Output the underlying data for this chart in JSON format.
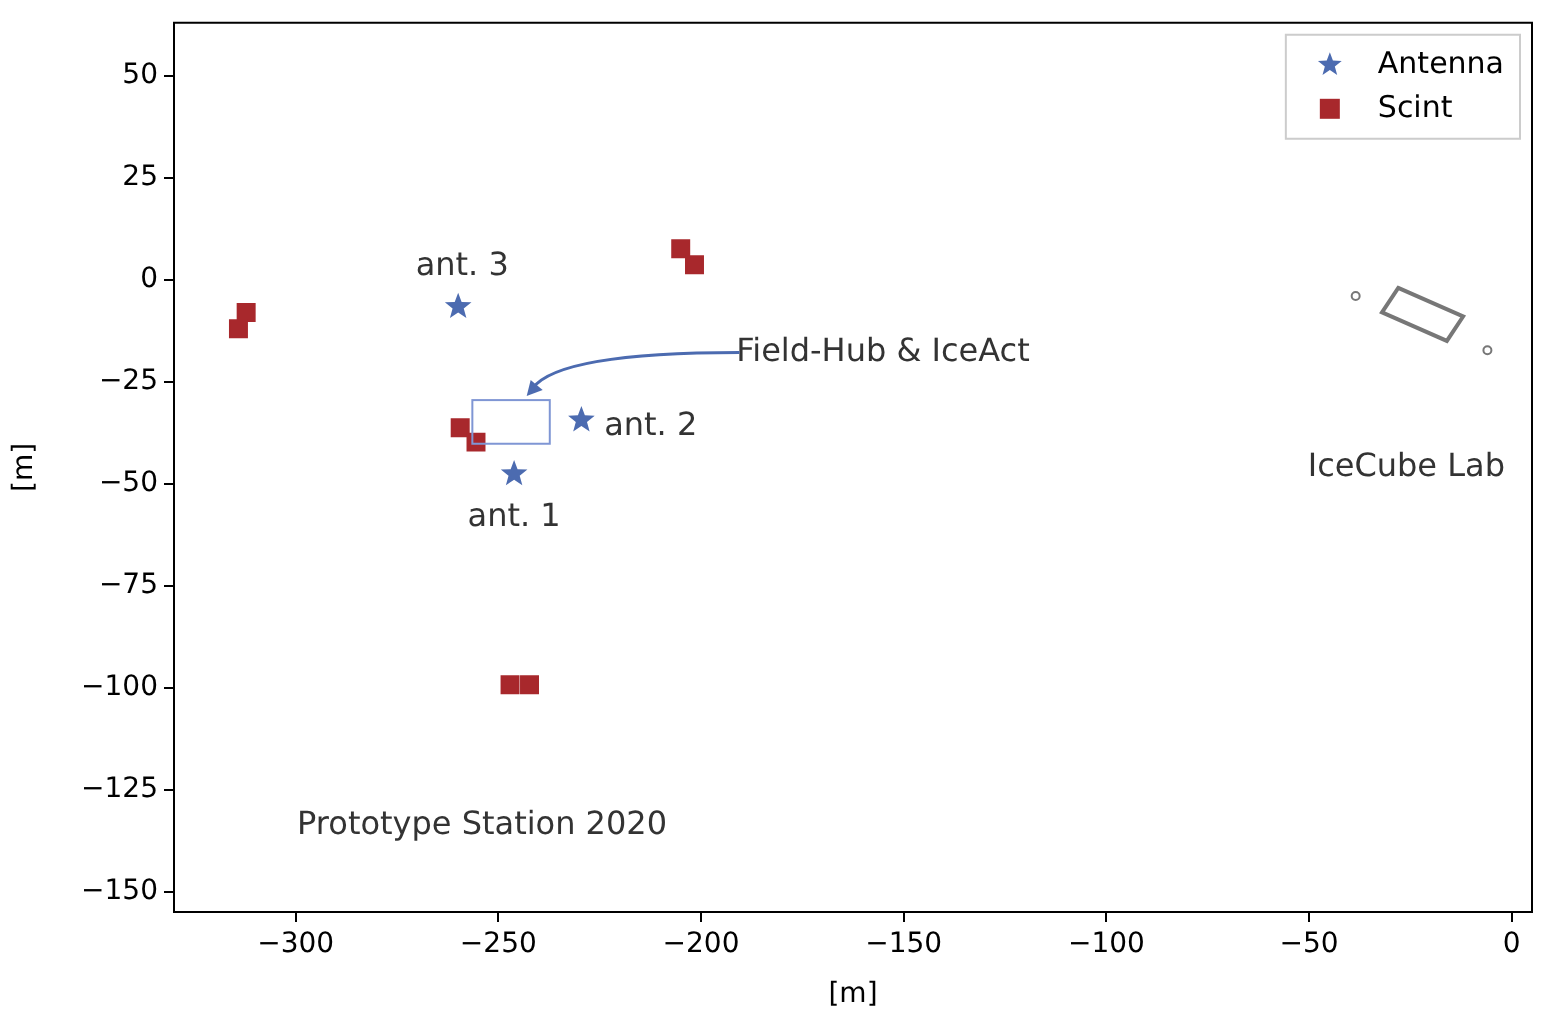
{
  "chart_data": {
    "type": "scatter",
    "xlabel": "[m]",
    "ylabel": "[m]",
    "xlim": [
      -330,
      5
    ],
    "ylim": [
      -155,
      63
    ],
    "xticks": [
      -300,
      -250,
      -200,
      -150,
      -100,
      -50,
      0
    ],
    "yticks": [
      -150,
      -125,
      -100,
      -75,
      -50,
      -25,
      0,
      25,
      50
    ],
    "grid": false,
    "legend": "top right",
    "series": [
      {
        "name": "Antenna",
        "color": "#4c6bb0",
        "marker": "star",
        "x": [
          -259.9,
          -229.5,
          -246.1
        ],
        "values": [
          -6.6,
          -34.4,
          -47.6
        ]
      },
      {
        "name": "Scint",
        "color": "#a8282c",
        "marker": "square",
        "x": [
          -312.2,
          -314.1,
          -259.4,
          -255.5,
          -205,
          -201.6,
          -247.1,
          -242.3
        ],
        "values": [
          -8,
          -12,
          -36.3,
          -39.8,
          7.6,
          3.7,
          -99.3,
          -99.3
        ]
      }
    ],
    "annotations": [
      "ant. 3",
      "ant. 2",
      "ant. 1",
      "Field-Hub & IceAct",
      "IceCube Lab",
      "Prototype Station 2020"
    ]
  }
}
